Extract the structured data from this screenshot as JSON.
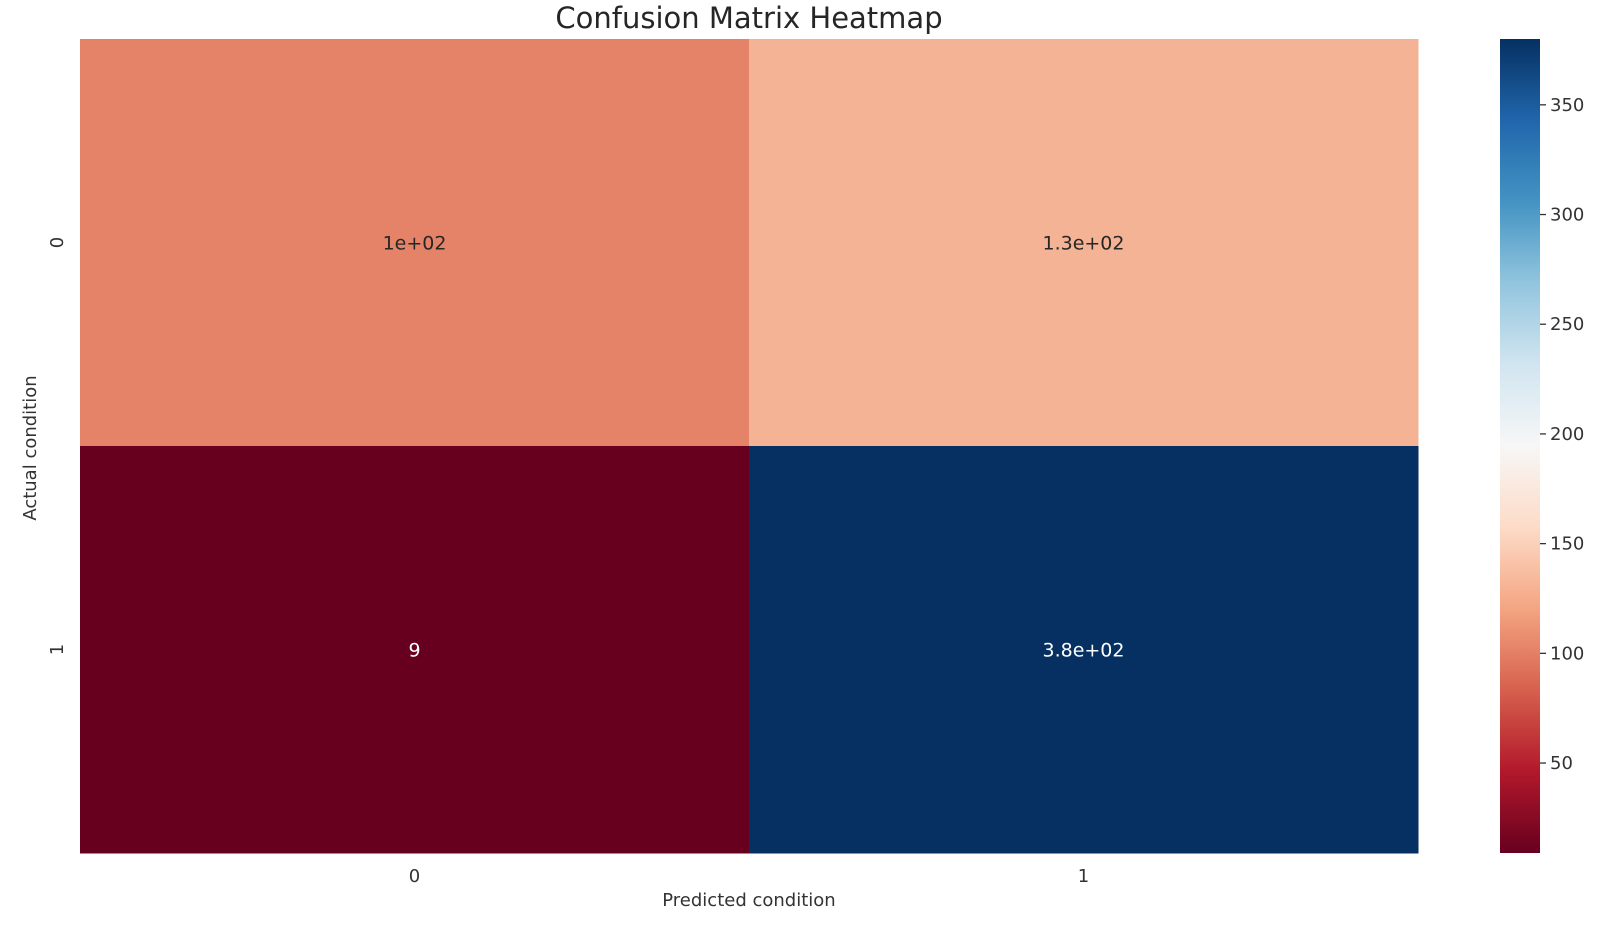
{
  "chart_data": {
    "type": "heatmap",
    "title": "Confusion Matrix Heatmap",
    "xlabel": "Predicted condition",
    "ylabel": "Actual condition",
    "x_categories": [
      "0",
      "1"
    ],
    "y_categories": [
      "0",
      "1"
    ],
    "values": [
      [
        100,
        130
      ],
      [
        9,
        380
      ]
    ],
    "annotations": [
      [
        "1e+02",
        "1.3e+02"
      ],
      [
        "9",
        "3.8e+02"
      ]
    ],
    "colormap": "RdBu",
    "color_range": [
      9,
      380
    ],
    "colorbar_ticks": [
      50,
      100,
      150,
      200,
      250,
      300,
      350
    ],
    "colors": {
      "v9": "#67001f",
      "v100": "#e58368",
      "v130": "#f4b394",
      "v380": "#053061"
    },
    "colormap_stops": [
      "#67001f",
      "#b2182b",
      "#d6604d",
      "#f4a582",
      "#fddbc7",
      "#f7f7f7",
      "#d1e5f0",
      "#92c5de",
      "#4393c3",
      "#2166ac",
      "#053061"
    ],
    "grid": false,
    "legend": "colorbar-right"
  }
}
